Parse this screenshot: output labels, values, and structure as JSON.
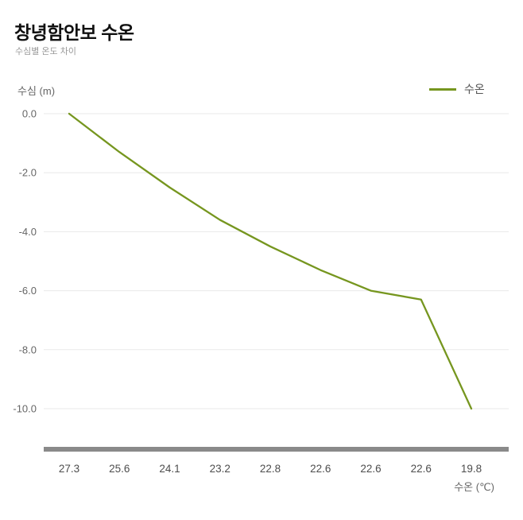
{
  "header": {
    "title": "창녕함안보 수온",
    "subtitle": "수심별 온도 차이"
  },
  "chart_data": {
    "type": "line",
    "title": "창녕함안보 수온",
    "subtitle": "수심별 온도 차이",
    "xlabel": "수온 (℃)",
    "ylabel": "수심 (m)",
    "categories": [
      "27.3",
      "25.6",
      "24.1",
      "23.2",
      "22.8",
      "22.6",
      "22.6",
      "22.6",
      "19.8"
    ],
    "series": [
      {
        "name": "수온",
        "color": "#76961f",
        "depths": [
          0.0,
          -1.3,
          -2.5,
          -3.6,
          -4.5,
          -5.3,
          -6.0,
          -6.3,
          -10.0
        ]
      }
    ],
    "y_ticks": [
      "0.0",
      "-2.0",
      "-4.0",
      "-6.0",
      "-8.0",
      "-10.0"
    ],
    "ylim": [
      -10.0,
      0.0
    ],
    "grid": "horizontal-only",
    "legend_position": "top-right"
  }
}
